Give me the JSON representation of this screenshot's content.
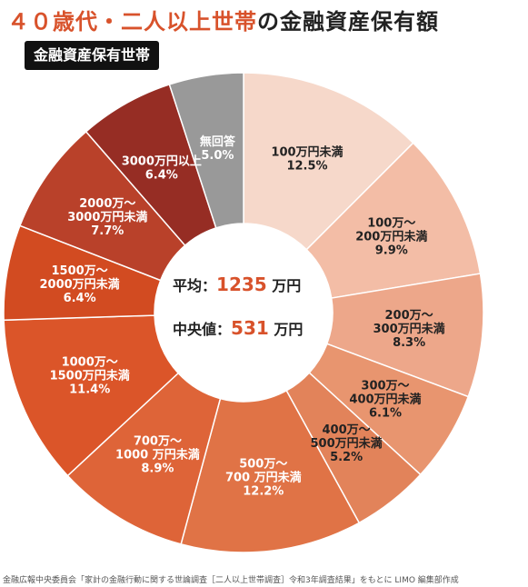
{
  "title_accent": "４０歳代・二人以上世帯",
  "title_rest": "の金融資産保有額",
  "badge": "金融資産保有世帯",
  "center": {
    "mean_label": "平均",
    "mean_value": "1235",
    "mean_unit": "万円",
    "median_label": "中央値",
    "median_value": "531",
    "median_unit": "万円"
  },
  "source": "金融広報中央委員会「家計の金融行動に関する世論調査［二人以上世帯調査］令和3年調査結果」をもとに LIMO 編集部作成",
  "chart_data": {
    "type": "pie",
    "donut": true,
    "slices": [
      {
        "label": [
          "100万円未満"
        ],
        "percent_text": "12.5%",
        "value": 12.5,
        "color": "#f6d8ca",
        "text_color": "#222222"
      },
      {
        "label": [
          "100万～",
          "200万円未満"
        ],
        "percent_text": "9.9%",
        "value": 9.9,
        "color": "#f3bda6",
        "text_color": "#222222"
      },
      {
        "label": [
          "200万～",
          "300万円未満"
        ],
        "percent_text": "8.3%",
        "value": 8.3,
        "color": "#eda78a",
        "text_color": "#222222"
      },
      {
        "label": [
          "300万～",
          "400万円未満"
        ],
        "percent_text": "6.1%",
        "value": 6.1,
        "color": "#e8956f",
        "text_color": "#222222"
      },
      {
        "label": [
          "400万～",
          "500万円未満"
        ],
        "percent_text": "5.2%",
        "value": 5.2,
        "color": "#e2835a",
        "text_color": "#222222"
      },
      {
        "label": [
          "500万～",
          "700 万円未満"
        ],
        "percent_text": "12.2%",
        "value": 12.2,
        "color": "#e07346",
        "text_color": "#ffffff"
      },
      {
        "label": [
          "700万～",
          "1000 万円未満"
        ],
        "percent_text": "8.9%",
        "value": 8.9,
        "color": "#de6438",
        "text_color": "#ffffff"
      },
      {
        "label": [
          "1000万～",
          "1500万円未満"
        ],
        "percent_text": "11.4%",
        "value": 11.4,
        "color": "#db5529",
        "text_color": "#ffffff"
      },
      {
        "label": [
          "1500万～",
          "2000万円未満"
        ],
        "percent_text": "6.4%",
        "value": 6.4,
        "color": "#d24b21",
        "text_color": "#ffffff"
      },
      {
        "label": [
          "2000万～",
          "3000万円未満"
        ],
        "percent_text": "7.7%",
        "value": 7.7,
        "color": "#b9412a",
        "text_color": "#ffffff"
      },
      {
        "label": [
          "3000万円以上"
        ],
        "percent_text": "6.4%",
        "value": 6.4,
        "color": "#962d24",
        "text_color": "#ffffff"
      },
      {
        "label": [
          "無回答"
        ],
        "percent_text": "5.0%",
        "value": 5.0,
        "color": "#999999",
        "text_color": "#ffffff"
      }
    ]
  }
}
